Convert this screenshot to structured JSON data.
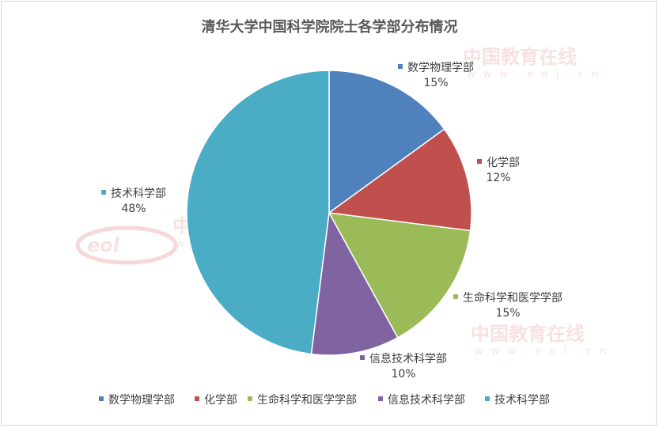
{
  "chart_data": {
    "type": "pie",
    "title": "清华大学中国科学院院士各学部分布情况",
    "categories": [
      "数学物理学部",
      "化学部",
      "生命科学和医学学部",
      "信息技术科学部",
      "技术科学部"
    ],
    "values": [
      15,
      12,
      15,
      10,
      48
    ],
    "value_labels": [
      "15%",
      "12%",
      "15%",
      "10%",
      "48%"
    ],
    "colors": [
      "#4f81bd",
      "#c0504d",
      "#9bbb59",
      "#8064a2",
      "#4bacc6"
    ],
    "legend": "bottom",
    "grid": false
  },
  "watermark": {
    "brand": "中国教育在线",
    "url": "w w w . e o l . c n",
    "logo": "eol"
  }
}
